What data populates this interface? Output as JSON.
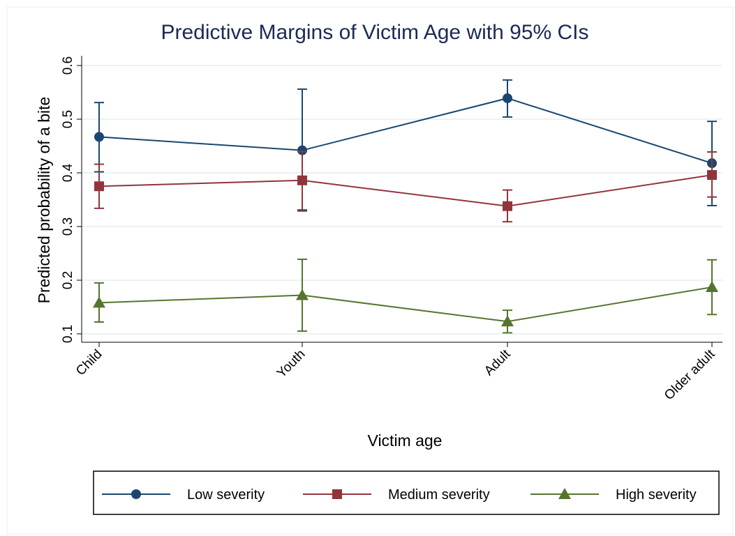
{
  "chart_data": {
    "type": "line",
    "title": "Predictive Margins of Victim Age with 95% CIs",
    "x_label": "Victim age",
    "y_label": "Predicted probability of a bite",
    "categories": [
      "Child",
      "Youth",
      "Adult",
      "Older adult"
    ],
    "series": [
      {
        "name": "Low severity",
        "color": "#1a476f",
        "marker": "circle",
        "values": [
          0.467,
          0.442,
          0.539,
          0.418
        ],
        "lower": [
          0.402,
          0.329,
          0.504,
          0.339
        ],
        "upper": [
          0.531,
          0.556,
          0.573,
          0.496
        ]
      },
      {
        "name": "Medium severity",
        "color": "#90353b",
        "marker": "square",
        "values": [
          0.375,
          0.386,
          0.338,
          0.396
        ],
        "lower": [
          0.334,
          0.331,
          0.309,
          0.355
        ],
        "upper": [
          0.416,
          0.44,
          0.368,
          0.439
        ]
      },
      {
        "name": "High severity",
        "color": "#55752f",
        "marker": "triangle",
        "values": [
          0.158,
          0.172,
          0.123,
          0.187
        ],
        "lower": [
          0.122,
          0.105,
          0.102,
          0.136
        ],
        "upper": [
          0.195,
          0.239,
          0.144,
          0.238
        ]
      }
    ],
    "ylim": [
      0.1,
      0.6
    ],
    "yticks": [
      0.1,
      0.2,
      0.3,
      0.4,
      0.5,
      0.6
    ],
    "grid": true
  }
}
